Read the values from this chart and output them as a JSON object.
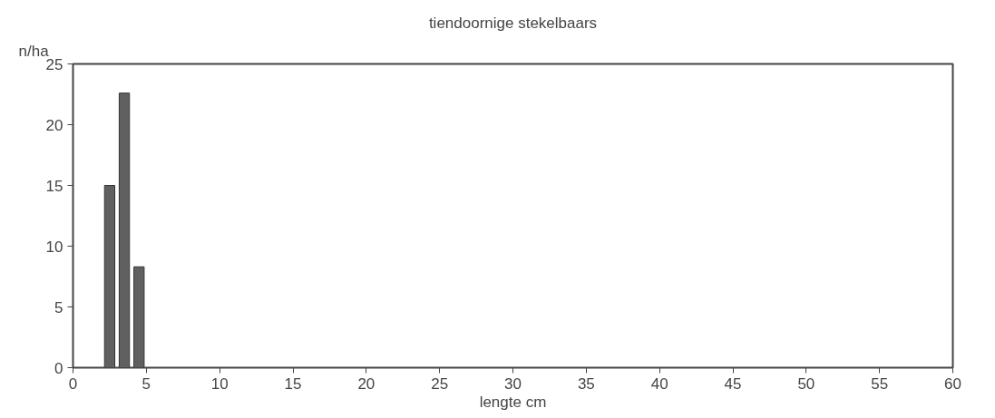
{
  "chart_data": {
    "type": "bar",
    "title": "tiendoornige stekelbaars",
    "xlabel": "lengte cm",
    "ylabel": "n/ha",
    "x": [
      2.5,
      3.5,
      4.5
    ],
    "values": [
      15,
      22.6,
      8.3
    ],
    "color": "#606060",
    "xlim": [
      0,
      60
    ],
    "xticks": [
      0,
      5,
      10,
      15,
      20,
      25,
      30,
      35,
      40,
      45,
      50,
      55,
      60
    ],
    "ylim": [
      0,
      25
    ],
    "yticks": [
      0,
      5,
      10,
      15,
      20,
      25
    ],
    "grid": false
  }
}
